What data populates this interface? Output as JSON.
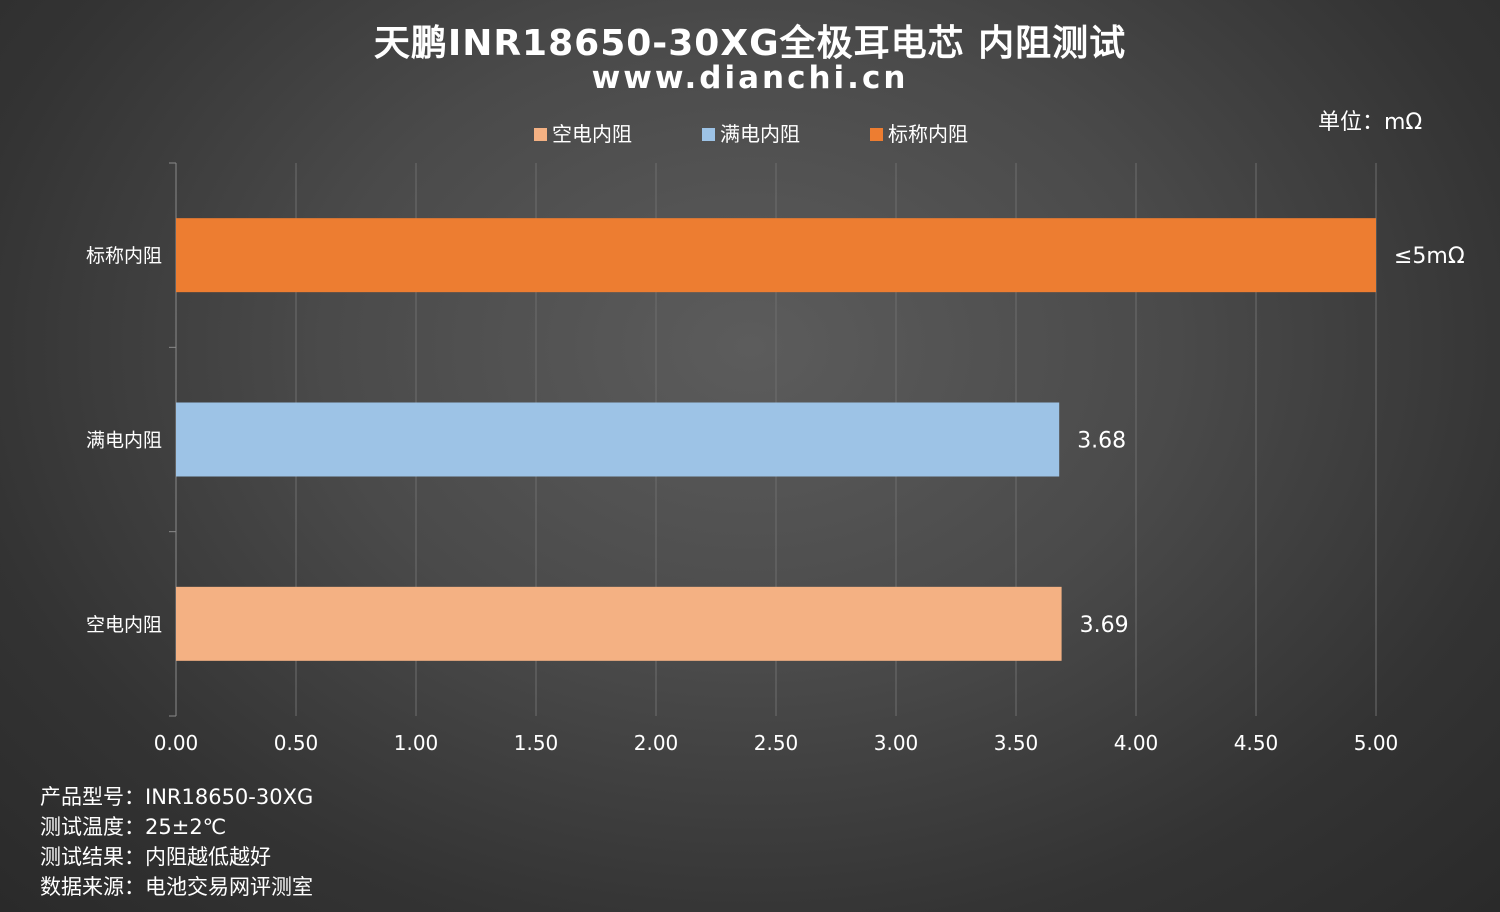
{
  "title": "天鹏INR18650-30XG全极耳电芯 内阻测试",
  "subtitle": "www.dianchi.cn",
  "unit_label": "单位：mΩ",
  "chart_data": {
    "type": "bar",
    "orientation": "horizontal",
    "categories": [
      "标称内阻",
      "满电内阻",
      "空电内阻"
    ],
    "series": [
      {
        "name": "标称内阻",
        "color": "#ed7d31",
        "category": "标称内阻",
        "value": 5.0,
        "label": "≤5mΩ"
      },
      {
        "name": "满电内阻",
        "color": "#9dc3e6",
        "category": "满电内阻",
        "value": 3.68,
        "label": "3.68"
      },
      {
        "name": "空电内阻",
        "color": "#f4b183",
        "category": "空电内阻",
        "value": 3.69,
        "label": "3.69"
      }
    ],
    "legend_order": [
      "空电内阻",
      "满电内阻",
      "标称内阻"
    ],
    "xlim": [
      0,
      5
    ],
    "xticks": [
      "0.00",
      "0.50",
      "1.00",
      "1.50",
      "2.00",
      "2.50",
      "3.00",
      "3.50",
      "4.00",
      "4.50",
      "5.00"
    ],
    "grid": true,
    "legend_position": "top"
  },
  "notes": [
    "产品型号：INR18650-30XG",
    "测试温度：25±2℃",
    "测试结果：内阻越低越好",
    "数据来源：电池交易网评测室"
  ]
}
